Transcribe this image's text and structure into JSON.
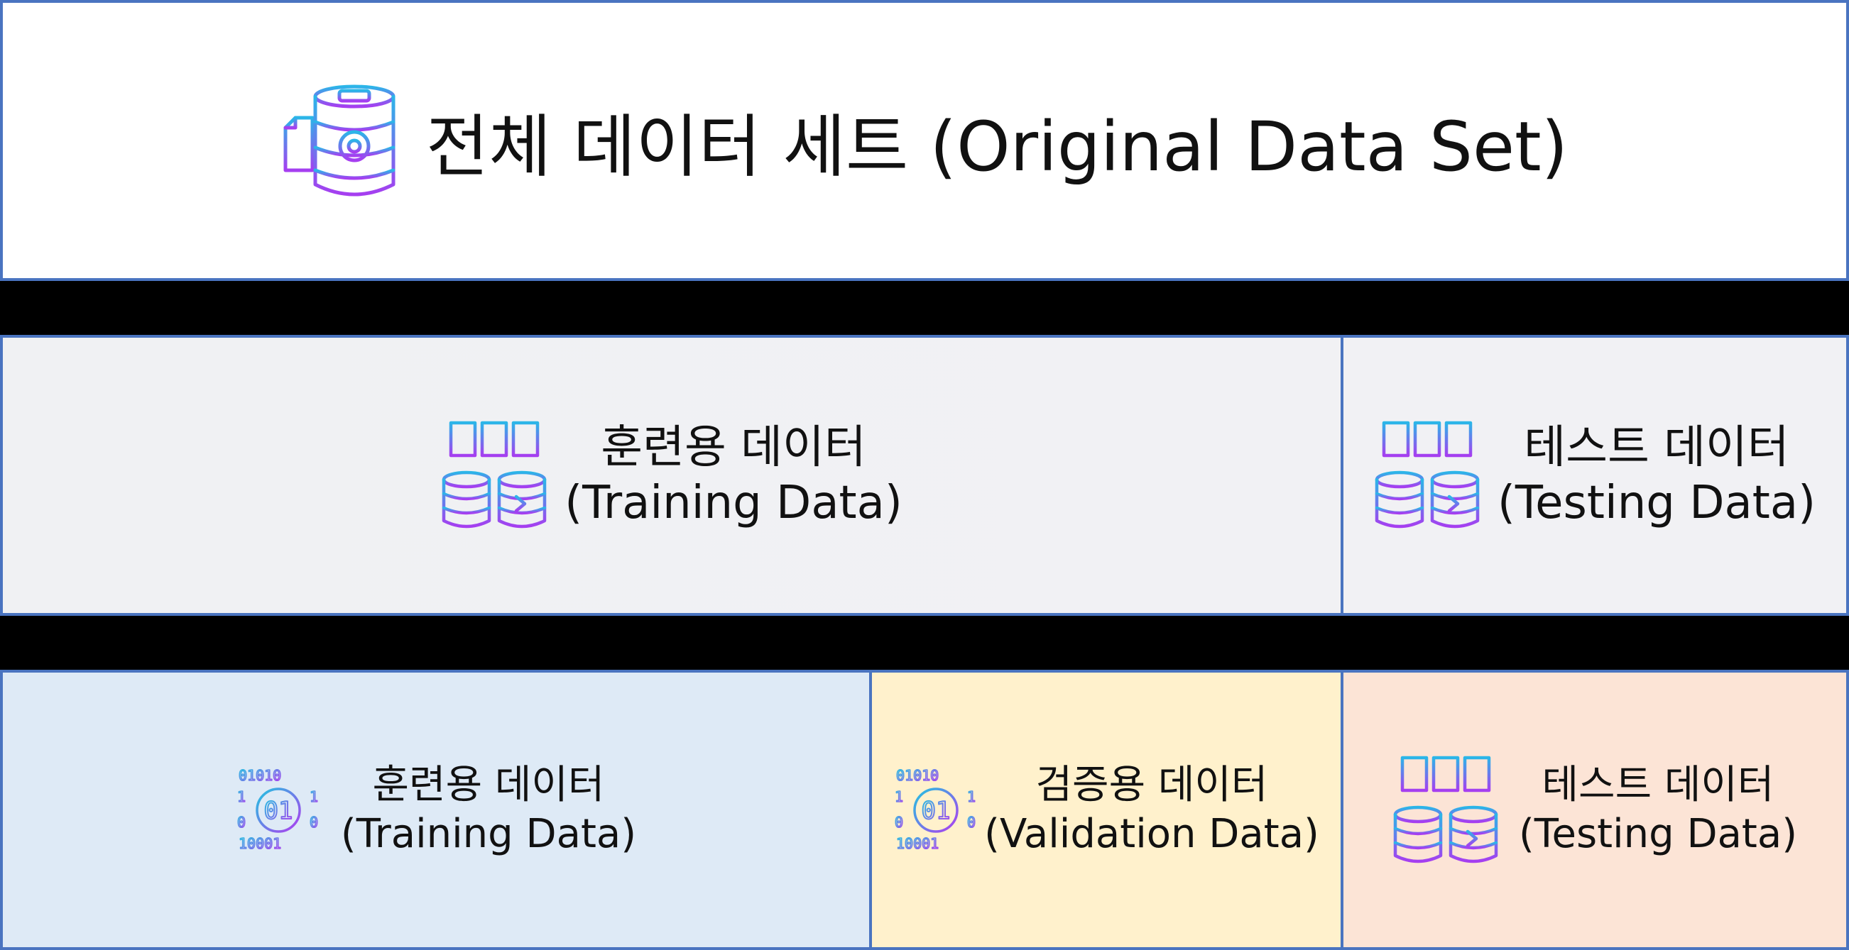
{
  "header": {
    "title": "전체 데이터 세트 (Original Data Set)",
    "icon": "database-gear-icon"
  },
  "split_1": {
    "training": {
      "label_ko": "훈련용 데이터",
      "label_en": "(Training Data)",
      "icon": "server-database-transfer-icon",
      "background": "#f0f1f3"
    },
    "testing": {
      "label_ko": "테스트 데이터",
      "label_en": "(Testing Data)",
      "icon": "server-database-transfer-icon",
      "background": "#f1f1f4"
    }
  },
  "split_2": {
    "training": {
      "label_ko": "훈련용 데이터",
      "label_en": "(Training Data)",
      "icon": "binary-data-icon",
      "background": "#deeaf6"
    },
    "validation": {
      "label_ko": "검증용 데이터",
      "label_en": "(Validation Data)",
      "icon": "binary-data-icon",
      "background": "#fff1cc"
    },
    "testing": {
      "label_ko": "테스트 데이터",
      "label_en": "(Testing Data)",
      "icon": "server-database-transfer-icon",
      "background": "#fce4d6"
    }
  },
  "colors": {
    "border": "#4a74c0",
    "separator": "#000000",
    "icon_gradient_start": "#2bb6e8",
    "icon_gradient_end": "#a63ef0"
  }
}
